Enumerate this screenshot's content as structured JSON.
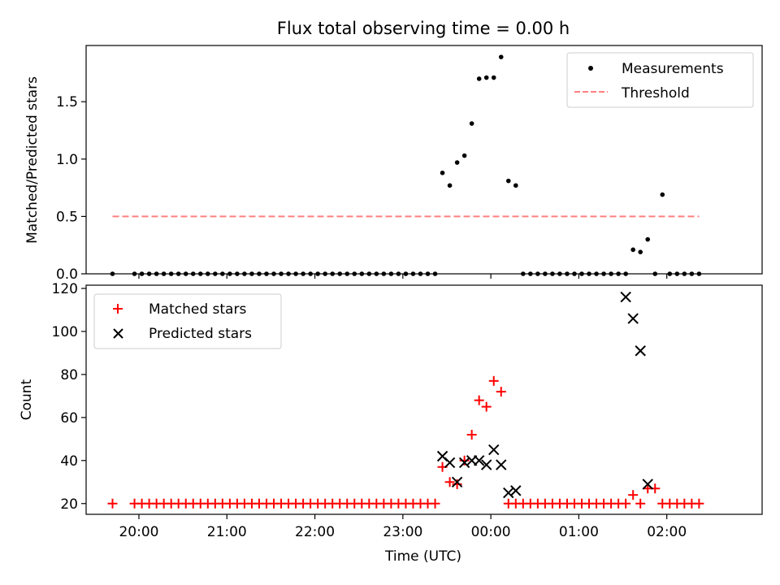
{
  "chart_data": [
    {
      "type": "scatter",
      "title": "Flux total observing time = 0.00 h",
      "xlabel": "",
      "ylabel": "Matched/Predicted stars",
      "ylim": [
        0.0,
        1.99
      ],
      "yticks": [
        0.0,
        0.5,
        1.0,
        1.5
      ],
      "ytick_labels": [
        "0.0",
        "0.5",
        "1.0",
        "1.5"
      ],
      "grid": false,
      "legend_position": "top-right",
      "x_range": [
        "19:24",
        "03:05"
      ],
      "series": [
        {
          "name": "Measurements",
          "marker": "dot",
          "color": "#000000",
          "x": [
            "19:42",
            "19:57",
            "20:02",
            "20:07",
            "20:12",
            "20:17",
            "20:22",
            "20:27",
            "20:32",
            "20:37",
            "20:42",
            "20:47",
            "20:52",
            "20:57",
            "21:02",
            "21:07",
            "21:12",
            "21:17",
            "21:22",
            "21:27",
            "21:32",
            "21:37",
            "21:42",
            "21:47",
            "21:52",
            "21:57",
            "22:02",
            "22:07",
            "22:12",
            "22:17",
            "22:22",
            "22:27",
            "22:32",
            "22:37",
            "22:42",
            "22:47",
            "22:52",
            "22:57",
            "23:02",
            "23:07",
            "23:12",
            "23:17",
            "23:22",
            "23:27",
            "23:32",
            "23:37",
            "23:42",
            "23:47",
            "23:52",
            "23:57",
            "00:02",
            "00:07",
            "00:12",
            "00:17",
            "00:22",
            "00:27",
            "00:32",
            "00:37",
            "00:42",
            "00:47",
            "00:52",
            "00:57",
            "01:02",
            "01:07",
            "01:12",
            "01:17",
            "01:22",
            "01:27",
            "01:32",
            "01:37",
            "01:42",
            "01:47",
            "01:52",
            "01:57",
            "02:02",
            "02:07",
            "02:12",
            "02:17",
            "02:22"
          ],
          "y": [
            0,
            0,
            0,
            0,
            0,
            0,
            0,
            0,
            0,
            0,
            0,
            0,
            0,
            0,
            0,
            0,
            0,
            0,
            0,
            0,
            0,
            0,
            0,
            0,
            0,
            0,
            0,
            0,
            0,
            0,
            0,
            0,
            0,
            0,
            0,
            0,
            0,
            0,
            0,
            0,
            0,
            0,
            0,
            0.88,
            0.77,
            0.97,
            1.03,
            1.31,
            1.7,
            1.71,
            1.71,
            1.89,
            0.81,
            0.77,
            0,
            0,
            0,
            0,
            0,
            0,
            0,
            0,
            0,
            0,
            0,
            0,
            0,
            0,
            0,
            0.21,
            0.19,
            0.3,
            0,
            0.69,
            0,
            0,
            0,
            0,
            0
          ]
        },
        {
          "name": "Threshold",
          "style": "dashed",
          "color": "#ff7f7f",
          "x": [
            "19:42",
            "02:22"
          ],
          "y": [
            0.5,
            0.5
          ]
        }
      ]
    },
    {
      "type": "scatter",
      "title": "",
      "xlabel": "Time (UTC)",
      "ylabel": "Count",
      "ylim": [
        15,
        121.5
      ],
      "yticks": [
        20,
        40,
        60,
        80,
        100,
        120
      ],
      "ytick_labels": [
        "20",
        "40",
        "60",
        "80",
        "100",
        "120"
      ],
      "xticks": [
        "20:00",
        "21:00",
        "22:00",
        "23:00",
        "00:00",
        "01:00",
        "02:00"
      ],
      "x_range": [
        "19:24",
        "03:05"
      ],
      "grid": false,
      "legend_position": "top-left",
      "series": [
        {
          "name": "Matched stars",
          "marker": "plus",
          "color": "#ff0000",
          "x": [
            "19:42",
            "19:57",
            "20:02",
            "20:07",
            "20:12",
            "20:17",
            "20:22",
            "20:27",
            "20:32",
            "20:37",
            "20:42",
            "20:47",
            "20:52",
            "20:57",
            "21:02",
            "21:07",
            "21:12",
            "21:17",
            "21:22",
            "21:27",
            "21:32",
            "21:37",
            "21:42",
            "21:47",
            "21:52",
            "21:57",
            "22:02",
            "22:07",
            "22:12",
            "22:17",
            "22:22",
            "22:27",
            "22:32",
            "22:37",
            "22:42",
            "22:47",
            "22:52",
            "22:57",
            "23:02",
            "23:07",
            "23:12",
            "23:17",
            "23:22",
            "23:27",
            "23:32",
            "23:37",
            "23:42",
            "23:47",
            "23:52",
            "23:57",
            "00:02",
            "00:07",
            "00:12",
            "00:17",
            "00:22",
            "00:27",
            "00:32",
            "00:37",
            "00:42",
            "00:47",
            "00:52",
            "00:57",
            "01:02",
            "01:07",
            "01:12",
            "01:17",
            "01:22",
            "01:27",
            "01:32",
            "01:37",
            "01:42",
            "01:47",
            "01:52",
            "01:57",
            "02:02",
            "02:07",
            "02:12",
            "02:17",
            "02:22"
          ],
          "y": [
            20,
            20,
            20,
            20,
            20,
            20,
            20,
            20,
            20,
            20,
            20,
            20,
            20,
            20,
            20,
            20,
            20,
            20,
            20,
            20,
            20,
            20,
            20,
            20,
            20,
            20,
            20,
            20,
            20,
            20,
            20,
            20,
            20,
            20,
            20,
            20,
            20,
            20,
            20,
            20,
            20,
            20,
            20,
            37,
            30,
            29,
            40,
            52,
            68,
            65,
            77,
            72,
            20,
            20,
            20,
            20,
            20,
            20,
            20,
            20,
            20,
            20,
            20,
            20,
            20,
            20,
            20,
            20,
            20,
            24,
            20,
            27,
            27,
            20,
            20,
            20,
            20,
            20,
            20
          ]
        },
        {
          "name": "Predicted stars",
          "marker": "x",
          "color": "#000000",
          "x": [
            "23:27",
            "23:32",
            "23:37",
            "23:42",
            "23:47",
            "23:52",
            "23:57",
            "00:02",
            "00:07",
            "00:12",
            "00:17",
            "01:32",
            "01:37",
            "01:42",
            "01:47"
          ],
          "y": [
            42,
            39,
            30,
            39,
            40,
            40,
            38,
            45,
            38,
            25,
            26,
            116,
            106,
            91,
            29
          ]
        }
      ]
    }
  ]
}
